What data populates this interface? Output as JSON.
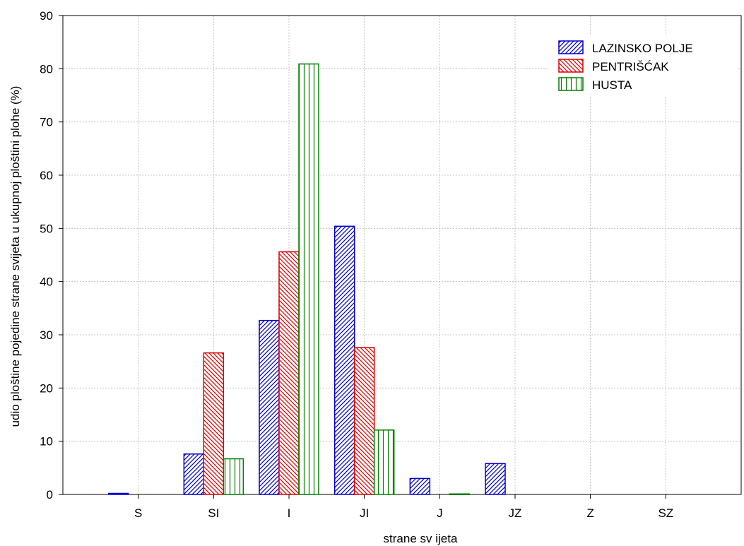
{
  "chart_data": {
    "type": "bar",
    "categories": [
      "S",
      "SI",
      "I",
      "JI",
      "J",
      "JZ",
      "Z",
      "SZ"
    ],
    "series": [
      {
        "name": "LAZINSKO POLJE",
        "values": [
          0.2,
          7.6,
          32.7,
          50.4,
          3.0,
          5.8,
          0,
          0
        ],
        "color": "#0000cc",
        "pattern": "diagonal-right"
      },
      {
        "name": "PENTRIŠĆAK",
        "values": [
          0,
          26.6,
          45.6,
          27.6,
          0,
          0,
          0,
          0
        ],
        "color": "#dd0000",
        "pattern": "diagonal-left"
      },
      {
        "name": "HUSTA",
        "values": [
          0,
          6.7,
          80.9,
          12.1,
          0.1,
          0,
          0,
          0
        ],
        "color": "#008000",
        "pattern": "vertical"
      }
    ],
    "xlabel": "strane sv ijeta",
    "ylabel": "udio ploštine pojedine strane svijeta u ukupnoj ploštini plohe (%)",
    "ylim": [
      0,
      90
    ],
    "yticks": [
      "0",
      "10",
      "20",
      "30",
      "40",
      "50",
      "60",
      "70",
      "80",
      "90"
    ],
    "grid": true,
    "legend_position": "top-right"
  }
}
